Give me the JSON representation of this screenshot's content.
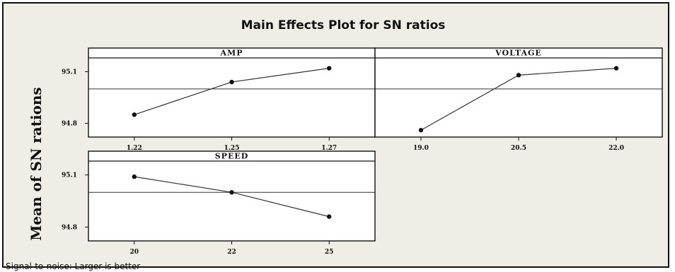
{
  "chart_data": {
    "type": "line",
    "title": "Main Effects Plot for SN ratios",
    "ylabel": "Mean of SN rations",
    "footnote": "Signal-to-noise: Larger is better",
    "ylim": [
      94.72,
      95.18
    ],
    "y_ticks": [
      94.8,
      95.1
    ],
    "y_tick_labels": [
      "94.8",
      "95.1"
    ],
    "grand_mean": 95.0,
    "panels": [
      {
        "title": "AMP",
        "categories": [
          "1.22",
          "1.25",
          "1.27"
        ],
        "values": [
          94.85,
          95.04,
          95.12
        ]
      },
      {
        "title": "VOLTAGE",
        "categories": [
          "19.0",
          "20.5",
          "22.0"
        ],
        "values": [
          94.76,
          95.08,
          95.12
        ]
      },
      {
        "title": "SPEED",
        "categories": [
          "20",
          "22",
          "25"
        ],
        "values": [
          95.09,
          95.0,
          94.86
        ]
      }
    ]
  }
}
